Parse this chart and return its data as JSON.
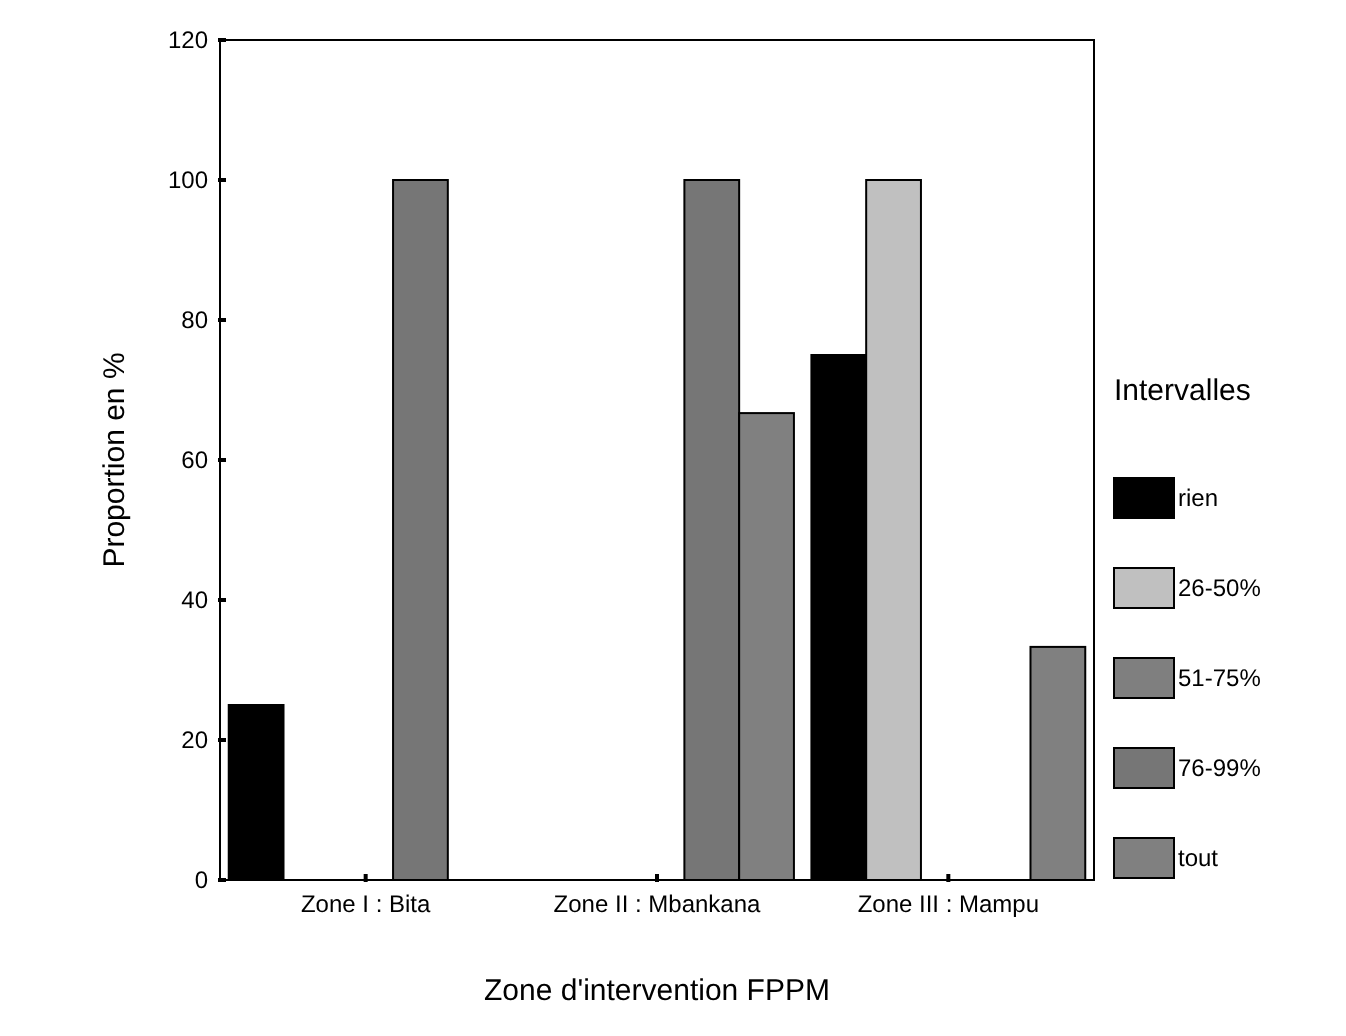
{
  "chart_data": {
    "type": "bar",
    "xlabel": "Zone d'intervention FPPM",
    "ylabel": "Proportion en %",
    "legend_title": "Intervalles",
    "legend": "right",
    "categories": [
      "Zone I : Bita",
      "Zone II : Mbankana",
      "Zone III : Mampu"
    ],
    "series": [
      {
        "name": "rien",
        "color": "#000000",
        "values": [
          25,
          null,
          75
        ]
      },
      {
        "name": "26-50%",
        "color": "#c0c0c0",
        "values": [
          null,
          null,
          100
        ]
      },
      {
        "name": "51-75%",
        "color": "#7f7f7f",
        "values": [
          null,
          null,
          null
        ]
      },
      {
        "name": "76-99%",
        "color": "#767676",
        "values": [
          100,
          100,
          null
        ]
      },
      {
        "name": "tout",
        "color": "#808080",
        "values": [
          null,
          66.7,
          33.3
        ]
      }
    ],
    "ylim": [
      0,
      120
    ],
    "yticks": [
      0,
      20,
      40,
      60,
      80,
      100,
      120
    ],
    "grid": false
  }
}
